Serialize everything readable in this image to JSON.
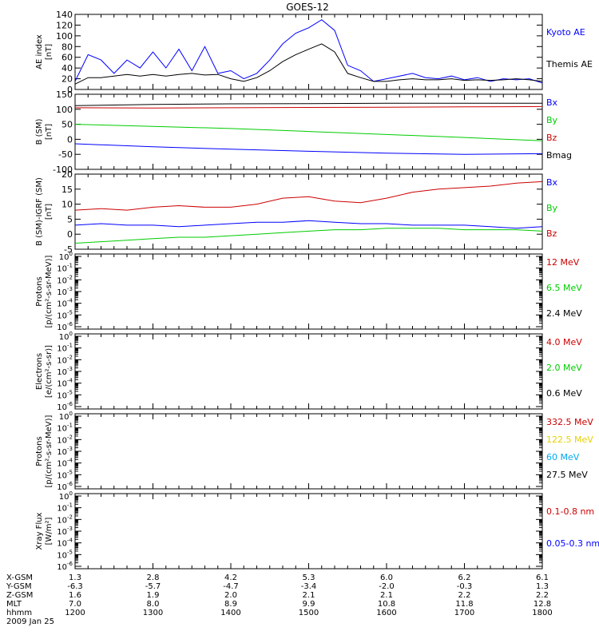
{
  "title": "GOES-12",
  "colors": {
    "black": "#000000",
    "blue": "#0000ff",
    "red": "#cc0000",
    "green": "#00cc00",
    "yellow": "#e6d200",
    "cyan": "#00aaee"
  },
  "chart_data": [
    {
      "type": "line",
      "ylabel": "AE index\n[nT]",
      "ylim": [
        0,
        140
      ],
      "yticks": [
        "0",
        "20",
        "40",
        "60",
        "80",
        "100",
        "120",
        "140"
      ],
      "legend": [
        {
          "label": "Kyoto AE",
          "color": "blue"
        },
        {
          "label": "Themis AE",
          "color": "black"
        }
      ],
      "x": [
        1200,
        1210,
        1220,
        1230,
        1240,
        1250,
        1300,
        1310,
        1320,
        1330,
        1340,
        1350,
        1400,
        1410,
        1420,
        1430,
        1440,
        1450,
        1500,
        1510,
        1520,
        1530,
        1540,
        1550,
        1600,
        1610,
        1620,
        1630,
        1640,
        1650,
        1700,
        1710,
        1720,
        1730,
        1740,
        1750,
        1800
      ],
      "series": [
        {
          "name": "Kyoto AE",
          "color": "blue",
          "values": [
            15,
            65,
            55,
            30,
            55,
            40,
            70,
            40,
            75,
            35,
            80,
            30,
            35,
            20,
            30,
            55,
            85,
            105,
            115,
            130,
            110,
            45,
            35,
            15,
            20,
            25,
            30,
            22,
            20,
            25,
            18,
            22,
            15,
            20,
            18,
            20,
            12
          ]
        },
        {
          "name": "Themis AE",
          "color": "black",
          "values": [
            10,
            22,
            22,
            25,
            28,
            25,
            28,
            25,
            28,
            30,
            27,
            28,
            20,
            15,
            22,
            35,
            52,
            65,
            75,
            85,
            70,
            30,
            22,
            15,
            15,
            18,
            20,
            18,
            18,
            20,
            17,
            18,
            17,
            18,
            20,
            18,
            15
          ]
        }
      ]
    },
    {
      "type": "line",
      "ylabel": "B (SM)\n[nT]",
      "ylim": [
        -100,
        150
      ],
      "yticks": [
        "-100",
        "-50",
        "0",
        "50",
        "100",
        "150"
      ],
      "legend": [
        {
          "label": "Bx",
          "color": "blue"
        },
        {
          "label": "By",
          "color": "green"
        },
        {
          "label": "Bz",
          "color": "red"
        },
        {
          "label": "Bmag",
          "color": "black"
        }
      ],
      "x": [
        1200,
        1300,
        1400,
        1500,
        1600,
        1700,
        1800
      ],
      "series": [
        {
          "name": "Bmag",
          "color": "black",
          "values": [
            112,
            116,
            118,
            119,
            120,
            120,
            120
          ]
        },
        {
          "name": "Bz",
          "color": "red",
          "values": [
            105,
            104,
            105,
            106,
            107,
            108,
            109
          ]
        },
        {
          "name": "By",
          "color": "green",
          "values": [
            50,
            43,
            36,
            26,
            16,
            6,
            -5
          ]
        },
        {
          "name": "Bx",
          "color": "blue",
          "values": [
            -15,
            -25,
            -33,
            -40,
            -46,
            -50,
            -48
          ]
        }
      ]
    },
    {
      "type": "line",
      "ylabel": "B (SM)-IGRF (SM)\n[nT]",
      "ylim": [
        -5,
        20
      ],
      "yticks": [
        "-5",
        "0",
        "5",
        "10",
        "15",
        "20"
      ],
      "legend": [
        {
          "label": "Bx",
          "color": "blue"
        },
        {
          "label": "By",
          "color": "green"
        },
        {
          "label": "Bz",
          "color": "red"
        }
      ],
      "x": [
        1200,
        1220,
        1240,
        1300,
        1320,
        1340,
        1400,
        1420,
        1440,
        1500,
        1520,
        1540,
        1600,
        1620,
        1640,
        1700,
        1720,
        1740,
        1800
      ],
      "series": [
        {
          "name": "Bz",
          "color": "red",
          "values": [
            8,
            8.5,
            8,
            9,
            9.5,
            9,
            9,
            10,
            12,
            12.5,
            11,
            10.5,
            12,
            14,
            15,
            15.5,
            16,
            17,
            17.5
          ]
        },
        {
          "name": "Bx",
          "color": "blue",
          "values": [
            3,
            3.5,
            3,
            3,
            2.5,
            3,
            3.5,
            4,
            4,
            4.5,
            4,
            3.5,
            3.5,
            3,
            3,
            3,
            2.5,
            2,
            2.5
          ]
        },
        {
          "name": "By",
          "color": "green",
          "values": [
            -3,
            -2.5,
            -2,
            -1.5,
            -1,
            -1,
            -0.5,
            0,
            0.5,
            1,
            1.5,
            1.5,
            2,
            2,
            2,
            1.5,
            1.5,
            1.5,
            1
          ]
        }
      ]
    },
    {
      "type": "line",
      "ylabel": "Protons\n[p/(cm²-s-sr-MeV)]",
      "ylim": [
        1e-06,
        1
      ],
      "log": true,
      "legend": [
        {
          "label": "12 MeV",
          "color": "red"
        },
        {
          "label": "6.5 MeV",
          "color": "green"
        },
        {
          "label": "2.4 MeV",
          "color": "black"
        }
      ],
      "series": []
    },
    {
      "type": "line",
      "ylabel": "Electrons\n[e/(cm²-s-sr)]",
      "ylim": [
        1e-06,
        1
      ],
      "log": true,
      "legend": [
        {
          "label": "4.0 MeV",
          "color": "red"
        },
        {
          "label": "2.0 MeV",
          "color": "green"
        },
        {
          "label": "0.6 MeV",
          "color": "black"
        }
      ],
      "series": []
    },
    {
      "type": "line",
      "ylabel": "Protons\n[p/(cm²-s-sr-MeV)]",
      "ylim": [
        1e-06,
        1
      ],
      "log": true,
      "legend": [
        {
          "label": "332.5 MeV",
          "color": "red"
        },
        {
          "label": "122.5 MeV",
          "color": "yellow"
        },
        {
          "label": "60 MeV",
          "color": "cyan"
        },
        {
          "label": "27.5 MeV",
          "color": "black"
        }
      ],
      "series": []
    },
    {
      "type": "line",
      "ylabel": "Xray Flux\n[W/m²]",
      "ylim": [
        1e-06,
        1
      ],
      "log": true,
      "legend": [
        {
          "label": "0.1-0.8 nm",
          "color": "red"
        },
        {
          "label": "0.05-0.3 nm",
          "color": "blue"
        }
      ],
      "series": []
    }
  ],
  "ephemeris": {
    "rows": [
      {
        "label": "X-GSM",
        "values": [
          "1.3",
          "2.8",
          "4.2",
          "5.3",
          "6.0",
          "6.2",
          "6.1"
        ]
      },
      {
        "label": "Y-GSM",
        "values": [
          "-6.3",
          "-5.7",
          "-4.7",
          "-3.4",
          "-2.0",
          "-0.3",
          "1.3"
        ]
      },
      {
        "label": "Z-GSM",
        "values": [
          "1.6",
          "1.9",
          "2.0",
          "2.1",
          "2.1",
          "2.2",
          "2.2"
        ]
      },
      {
        "label": "MLT",
        "values": [
          "7.0",
          "8.0",
          "8.9",
          "9.9",
          "10.8",
          "11.8",
          "12.8"
        ]
      },
      {
        "label": "hhmm",
        "values": [
          "1200",
          "1300",
          "1400",
          "1500",
          "1600",
          "1700",
          "1800"
        ]
      }
    ],
    "date": "2009 Jan 25"
  }
}
